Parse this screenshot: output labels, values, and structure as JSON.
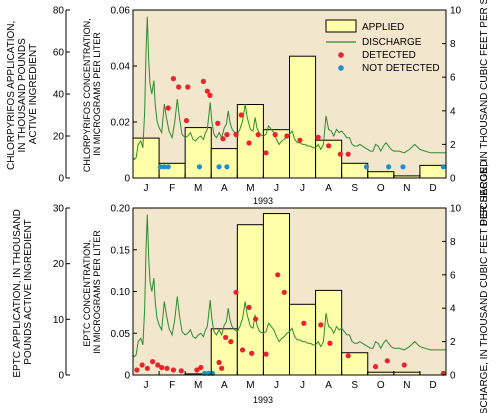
{
  "colors": {
    "plot_bg": "#f2e6cc",
    "bar_fill": "#ffffaa",
    "bar_stroke": "#000000",
    "discharge": "#2e8b2e",
    "detected": "#e8242a",
    "not_detected": "#1f8fc8"
  },
  "months": [
    "J",
    "F",
    "M",
    "A",
    "M",
    "J",
    "J",
    "A",
    "S",
    "O",
    "N",
    "D"
  ],
  "year": "1993",
  "legend": {
    "applied": "APPLIED",
    "discharge": "DISCHARGE",
    "detected": "DETECTED",
    "not_detected": "NOT DETECTED"
  },
  "labels": {
    "top_left_outer": [
      "CHLORPYRIFOS APPLICATION,",
      "IN THOUSAND POUNDS",
      "ACTIVE INGREDIENT"
    ],
    "top_left_inner": [
      "CHLORPYRIFOS CONCENTRATION,",
      "IN MICROGRAMS PER LITER"
    ],
    "top_right": "DISCHARGE, IN THOUSAND CUBIC FEET PER SECOND",
    "bottom_left_outer": [
      "EPTC APPLICATION, IN THOUSAND",
      "POUNDS ACTIVE INGREDIENT"
    ],
    "bottom_left_inner": [
      "EPTC CONCENTRATION,",
      "IN MICROGRAMS PER LITER"
    ],
    "bottom_right": "DISCHARGE, IN THOUSAND CUBIC FEET PER SECOND"
  },
  "chart_data": [
    {
      "type": "bar",
      "panel": "chlorpyrifos",
      "categories": [
        "J",
        "F",
        "M",
        "A",
        "M",
        "J",
        "J",
        "A",
        "S",
        "O",
        "N",
        "D"
      ],
      "applied_axis": {
        "ticks": [
          0,
          20,
          40,
          60,
          80
        ],
        "lim": [
          0,
          80
        ]
      },
      "concentration_axis": {
        "ticks": [
          "0",
          "0.02",
          "0.04",
          "0.06"
        ],
        "lim": [
          0,
          0.06
        ]
      },
      "discharge_axis": {
        "ticks": [
          0,
          2,
          4,
          6,
          8,
          10
        ],
        "lim": [
          0,
          10
        ]
      },
      "applied": [
        19,
        7,
        24,
        14,
        35,
        23,
        58,
        18,
        7,
        3,
        1,
        6
      ],
      "discharge": [
        [
          0,
          1.2
        ],
        [
          0.05,
          1.1
        ],
        [
          0.12,
          1.2
        ],
        [
          0.2,
          2.0
        ],
        [
          0.3,
          2.2
        ],
        [
          0.38,
          1.8
        ],
        [
          0.45,
          4.0
        ],
        [
          0.5,
          7.5
        ],
        [
          0.55,
          9.6
        ],
        [
          0.6,
          7.0
        ],
        [
          0.65,
          5.6
        ],
        [
          0.72,
          5.0
        ],
        [
          0.8,
          5.8
        ],
        [
          0.85,
          4.4
        ],
        [
          0.92,
          3.4
        ],
        [
          1.0,
          3.0
        ],
        [
          1.1,
          2.7
        ],
        [
          1.2,
          4.4
        ],
        [
          1.28,
          3.6
        ],
        [
          1.38,
          2.8
        ],
        [
          1.5,
          2.4
        ],
        [
          1.6,
          3.3
        ],
        [
          1.7,
          4.7
        ],
        [
          1.78,
          3.6
        ],
        [
          1.88,
          2.6
        ],
        [
          2.0,
          2.4
        ],
        [
          2.1,
          2.5
        ],
        [
          2.2,
          2.7
        ],
        [
          2.3,
          2.3
        ],
        [
          2.4,
          2.2
        ],
        [
          2.5,
          2.4
        ],
        [
          2.6,
          2.5
        ],
        [
          2.7,
          2.3
        ],
        [
          2.78,
          2.7
        ],
        [
          2.85,
          2.9
        ],
        [
          2.9,
          3.6
        ],
        [
          2.96,
          4.5
        ],
        [
          3.02,
          3.4
        ],
        [
          3.1,
          2.6
        ],
        [
          3.2,
          2.4
        ],
        [
          3.3,
          2.7
        ],
        [
          3.4,
          2.4
        ],
        [
          3.5,
          3.0
        ],
        [
          3.58,
          3.2
        ],
        [
          3.65,
          4.0
        ],
        [
          3.72,
          3.3
        ],
        [
          3.8,
          2.9
        ],
        [
          3.9,
          2.7
        ],
        [
          4.0,
          2.6
        ],
        [
          4.1,
          2.9
        ],
        [
          4.2,
          3.4
        ],
        [
          4.3,
          4.4
        ],
        [
          4.38,
          3.6
        ],
        [
          4.5,
          2.9
        ],
        [
          4.6,
          2.8
        ],
        [
          4.68,
          3.6
        ],
        [
          4.75,
          3.0
        ],
        [
          4.85,
          2.6
        ],
        [
          5.0,
          2.5
        ],
        [
          5.1,
          2.6
        ],
        [
          5.2,
          3.1
        ],
        [
          5.3,
          2.9
        ],
        [
          5.4,
          2.7
        ],
        [
          5.5,
          2.3
        ],
        [
          5.6,
          2.0
        ],
        [
          5.7,
          2.2
        ],
        [
          5.8,
          2.3
        ],
        [
          5.9,
          2.5
        ],
        [
          6.0,
          2.6
        ],
        [
          6.1,
          2.8
        ],
        [
          6.2,
          2.3
        ],
        [
          6.3,
          2.1
        ],
        [
          6.4,
          2.1
        ],
        [
          6.5,
          2.0
        ],
        [
          6.6,
          2.0
        ],
        [
          6.7,
          1.9
        ],
        [
          6.8,
          1.9
        ],
        [
          6.9,
          1.8
        ],
        [
          7.0,
          1.8
        ],
        [
          7.1,
          2.0
        ],
        [
          7.2,
          1.7
        ],
        [
          7.3,
          2.0
        ],
        [
          7.4,
          3.7
        ],
        [
          7.5,
          2.9
        ],
        [
          7.6,
          2.8
        ],
        [
          7.7,
          2.5
        ],
        [
          7.8,
          2.9
        ],
        [
          7.9,
          2.7
        ],
        [
          8.0,
          2.8
        ],
        [
          8.1,
          2.6
        ],
        [
          8.2,
          2.4
        ],
        [
          8.3,
          2.4
        ],
        [
          8.4,
          2.0
        ],
        [
          8.5,
          1.9
        ],
        [
          8.6,
          1.9
        ],
        [
          8.7,
          2.0
        ],
        [
          8.8,
          1.9
        ],
        [
          8.9,
          1.8
        ],
        [
          9.0,
          1.7
        ],
        [
          9.1,
          1.6
        ],
        [
          9.2,
          1.6
        ],
        [
          9.3,
          2.0
        ],
        [
          9.4,
          1.9
        ],
        [
          9.5,
          1.6
        ],
        [
          9.6,
          1.9
        ],
        [
          9.7,
          2.1
        ],
        [
          9.8,
          1.9
        ],
        [
          9.9,
          1.7
        ],
        [
          10.0,
          1.6
        ],
        [
          10.2,
          1.6
        ],
        [
          10.4,
          1.5
        ],
        [
          10.6,
          1.7
        ],
        [
          10.8,
          2.0
        ],
        [
          11.0,
          1.7
        ],
        [
          11.2,
          1.6
        ],
        [
          11.4,
          1.5
        ],
        [
          11.6,
          1.5
        ],
        [
          11.8,
          1.5
        ],
        [
          12.0,
          1.5
        ]
      ],
      "detected": [
        [
          1.35,
          0.025
        ],
        [
          1.55,
          0.0355
        ],
        [
          1.75,
          0.0325
        ],
        [
          2.05,
          0.0205
        ],
        [
          2.1,
          0.0325
        ],
        [
          2.7,
          0.0345
        ],
        [
          2.85,
          0.031
        ],
        [
          2.95,
          0.0295
        ],
        [
          3.25,
          0.0195
        ],
        [
          3.45,
          0.014
        ],
        [
          3.6,
          0.0155
        ],
        [
          3.95,
          0.0155
        ],
        [
          4.15,
          0.0225
        ],
        [
          4.45,
          0.0125
        ],
        [
          4.8,
          0.0155
        ],
        [
          5.1,
          0.009
        ],
        [
          5.45,
          0.0155
        ],
        [
          5.9,
          0.015
        ],
        [
          6.4,
          0.0135
        ],
        [
          7.1,
          0.0145
        ],
        [
          7.5,
          0.0115
        ],
        [
          7.95,
          0.0085
        ],
        [
          8.25,
          0.0085
        ]
      ],
      "not_detected": [
        [
          1.05,
          0.004
        ],
        [
          1.2,
          0.004
        ],
        [
          1.35,
          0.004
        ],
        [
          2.55,
          0.004
        ],
        [
          3.3,
          0.004
        ],
        [
          3.6,
          0.004
        ],
        [
          8.95,
          0.004
        ],
        [
          9.8,
          0.004
        ],
        [
          10.35,
          0.004
        ],
        [
          11.9,
          0.004
        ]
      ]
    },
    {
      "type": "bar",
      "panel": "eptc",
      "categories": [
        "J",
        "F",
        "M",
        "A",
        "M",
        "J",
        "J",
        "A",
        "S",
        "O",
        "N",
        "D"
      ],
      "applied_axis": {
        "ticks": [
          0,
          10,
          20,
          30
        ],
        "lim": [
          0,
          30
        ]
      },
      "concentration_axis": {
        "ticks": [
          "0",
          "0.05",
          "0.10",
          "0.15",
          "0.20"
        ],
        "lim": [
          0,
          0.2
        ]
      },
      "discharge_axis": {
        "ticks": [
          0,
          2,
          4,
          6,
          8,
          10
        ],
        "lim": [
          0,
          10
        ]
      },
      "applied": [
        0,
        0,
        0.2,
        8.3,
        27,
        29,
        12.7,
        15.2,
        4,
        0.5,
        0.5,
        0
      ],
      "discharge": [
        [
          0,
          1.2
        ],
        [
          0.05,
          1.1
        ],
        [
          0.12,
          1.2
        ],
        [
          0.2,
          2.0
        ],
        [
          0.3,
          2.2
        ],
        [
          0.38,
          1.8
        ],
        [
          0.45,
          4.0
        ],
        [
          0.5,
          7.5
        ],
        [
          0.55,
          9.6
        ],
        [
          0.6,
          7.0
        ],
        [
          0.65,
          5.6
        ],
        [
          0.72,
          5.0
        ],
        [
          0.8,
          5.8
        ],
        [
          0.85,
          4.4
        ],
        [
          0.92,
          3.4
        ],
        [
          1.0,
          3.0
        ],
        [
          1.1,
          2.7
        ],
        [
          1.2,
          4.4
        ],
        [
          1.28,
          3.6
        ],
        [
          1.38,
          2.8
        ],
        [
          1.5,
          2.4
        ],
        [
          1.6,
          3.3
        ],
        [
          1.7,
          4.7
        ],
        [
          1.78,
          3.6
        ],
        [
          1.88,
          2.6
        ],
        [
          2.0,
          2.4
        ],
        [
          2.1,
          2.5
        ],
        [
          2.2,
          2.7
        ],
        [
          2.3,
          2.3
        ],
        [
          2.4,
          2.2
        ],
        [
          2.5,
          2.4
        ],
        [
          2.6,
          2.5
        ],
        [
          2.7,
          2.3
        ],
        [
          2.78,
          2.7
        ],
        [
          2.85,
          2.9
        ],
        [
          2.9,
          3.6
        ],
        [
          2.96,
          4.5
        ],
        [
          3.02,
          3.4
        ],
        [
          3.1,
          2.6
        ],
        [
          3.2,
          2.4
        ],
        [
          3.3,
          2.7
        ],
        [
          3.4,
          2.4
        ],
        [
          3.5,
          3.0
        ],
        [
          3.58,
          3.2
        ],
        [
          3.65,
          4.0
        ],
        [
          3.72,
          3.3
        ],
        [
          3.8,
          2.9
        ],
        [
          3.9,
          2.7
        ],
        [
          4.0,
          2.6
        ],
        [
          4.1,
          2.9
        ],
        [
          4.2,
          3.4
        ],
        [
          4.3,
          4.4
        ],
        [
          4.38,
          3.6
        ],
        [
          4.5,
          2.9
        ],
        [
          4.6,
          2.8
        ],
        [
          4.68,
          3.6
        ],
        [
          4.75,
          3.0
        ],
        [
          4.85,
          2.6
        ],
        [
          5.0,
          2.5
        ],
        [
          5.1,
          2.6
        ],
        [
          5.2,
          3.1
        ],
        [
          5.3,
          2.9
        ],
        [
          5.4,
          2.7
        ],
        [
          5.5,
          2.3
        ],
        [
          5.6,
          2.0
        ],
        [
          5.7,
          2.2
        ],
        [
          5.8,
          2.3
        ],
        [
          5.9,
          2.5
        ],
        [
          6.0,
          2.6
        ],
        [
          6.1,
          2.8
        ],
        [
          6.2,
          2.3
        ],
        [
          6.3,
          2.1
        ],
        [
          6.4,
          2.1
        ],
        [
          6.5,
          2.0
        ],
        [
          6.6,
          2.0
        ],
        [
          6.7,
          1.9
        ],
        [
          6.8,
          1.9
        ],
        [
          6.9,
          1.8
        ],
        [
          7.0,
          1.8
        ],
        [
          7.1,
          2.0
        ],
        [
          7.2,
          1.7
        ],
        [
          7.3,
          2.0
        ],
        [
          7.4,
          3.7
        ],
        [
          7.5,
          2.9
        ],
        [
          7.6,
          2.8
        ],
        [
          7.7,
          2.5
        ],
        [
          7.8,
          2.9
        ],
        [
          7.9,
          2.7
        ],
        [
          8.0,
          2.8
        ],
        [
          8.1,
          2.6
        ],
        [
          8.2,
          2.4
        ],
        [
          8.3,
          2.4
        ],
        [
          8.4,
          2.0
        ],
        [
          8.5,
          1.9
        ],
        [
          8.6,
          1.9
        ],
        [
          8.7,
          2.0
        ],
        [
          8.8,
          1.9
        ],
        [
          8.9,
          1.8
        ],
        [
          9.0,
          1.7
        ],
        [
          9.1,
          1.6
        ],
        [
          9.2,
          1.6
        ],
        [
          9.3,
          2.0
        ],
        [
          9.4,
          1.9
        ],
        [
          9.5,
          1.6
        ],
        [
          9.6,
          1.9
        ],
        [
          9.7,
          2.1
        ],
        [
          9.8,
          1.9
        ],
        [
          9.9,
          1.7
        ],
        [
          10.0,
          1.6
        ],
        [
          10.2,
          1.6
        ],
        [
          10.4,
          1.5
        ],
        [
          10.6,
          1.7
        ],
        [
          10.8,
          2.0
        ],
        [
          11.0,
          1.7
        ],
        [
          11.2,
          1.6
        ],
        [
          11.4,
          1.5
        ],
        [
          11.6,
          1.5
        ],
        [
          11.8,
          1.5
        ],
        [
          12.0,
          1.5
        ]
      ],
      "detected": [
        [
          0.15,
          0.006
        ],
        [
          0.35,
          0.012
        ],
        [
          0.55,
          0.008
        ],
        [
          0.75,
          0.016
        ],
        [
          0.95,
          0.012
        ],
        [
          1.1,
          0.009
        ],
        [
          1.3,
          0.008
        ],
        [
          1.55,
          0.006
        ],
        [
          1.85,
          0.005
        ],
        [
          2.45,
          0.006
        ],
        [
          2.6,
          0.009
        ],
        [
          3.3,
          0.015
        ],
        [
          3.4,
          0.008
        ],
        [
          3.55,
          0.045
        ],
        [
          3.75,
          0.04
        ],
        [
          3.95,
          0.099
        ],
        [
          4.2,
          0.03
        ],
        [
          4.45,
          0.081
        ],
        [
          4.55,
          0.026
        ],
        [
          4.7,
          0.067
        ],
        [
          5.1,
          0.025
        ],
        [
          5.55,
          0.12
        ],
        [
          5.8,
          0.099
        ],
        [
          6.55,
          0.062
        ],
        [
          7.2,
          0.06
        ],
        [
          7.55,
          0.038
        ],
        [
          8.25,
          0.023
        ],
        [
          9.3,
          0.01
        ],
        [
          9.75,
          0.017
        ],
        [
          10.4,
          0.012
        ],
        [
          11.9,
          0.002
        ]
      ],
      "not_detected": [
        [
          2.75,
          0.002
        ],
        [
          2.9,
          0.002
        ],
        [
          3.05,
          0.002
        ]
      ]
    }
  ]
}
